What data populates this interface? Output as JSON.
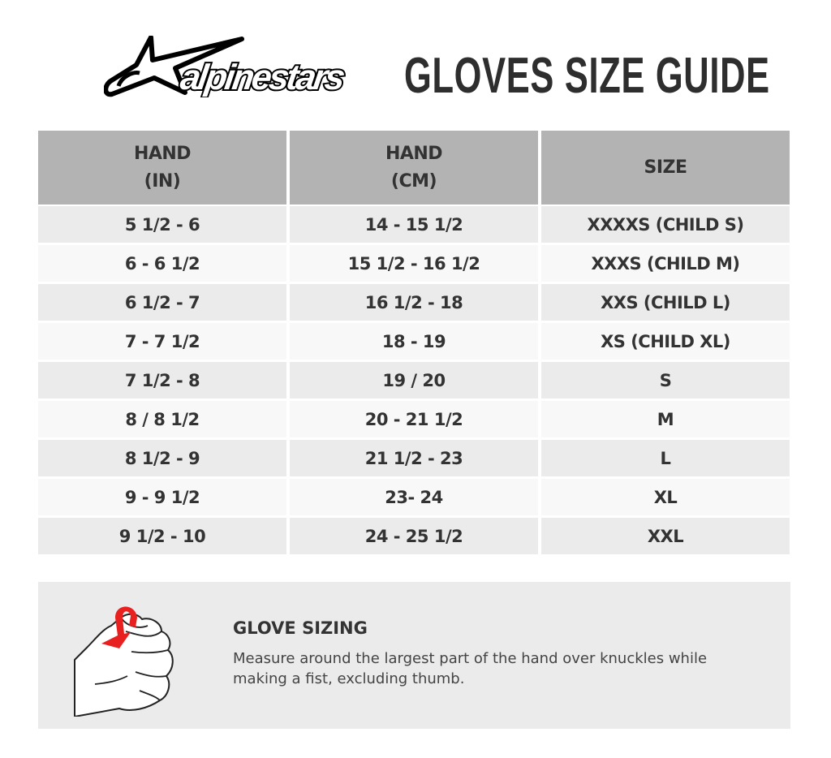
{
  "logo": {
    "text": "alpinestars"
  },
  "title": "GLOVES SIZE GUIDE",
  "table": {
    "headers": [
      [
        "HAND",
        "(IN)"
      ],
      [
        "HAND",
        "(CM)"
      ],
      [
        "SIZE"
      ]
    ],
    "rows": [
      [
        "5 1/2 - 6",
        "14 - 15 1/2",
        "XXXXS (CHILD S)"
      ],
      [
        "6 - 6 1/2",
        "15 1/2 - 16 1/2",
        "XXXS (CHILD M)"
      ],
      [
        "6 1/2 - 7",
        "16 1/2 - 18",
        "XXS (CHILD L)"
      ],
      [
        "7 - 7 1/2",
        "18 - 19",
        "XS (CHILD XL)"
      ],
      [
        "7 1/2 - 8",
        "19 / 20",
        "S"
      ],
      [
        "8 / 8 1/2",
        "20 - 21 1/2",
        "M"
      ],
      [
        "8 1/2 - 9",
        "21 1/2 - 23",
        "L"
      ],
      [
        "9 - 9 1/2",
        "23- 24",
        "XL"
      ],
      [
        "9 1/2 - 10",
        "24 - 25 1/2",
        "XXL"
      ]
    ]
  },
  "info": {
    "title": "GLOVE SIZING",
    "text": "Measure around the largest part of the hand over knuckles while making a fist, excluding thumb.",
    "icon": "hand-fist-measure-icon",
    "accent": "#e8201f"
  },
  "colors": {
    "header": "#b3b3b3",
    "row_odd": "#ebebeb",
    "row_even": "#f8f8f8",
    "text": "#333333"
  }
}
